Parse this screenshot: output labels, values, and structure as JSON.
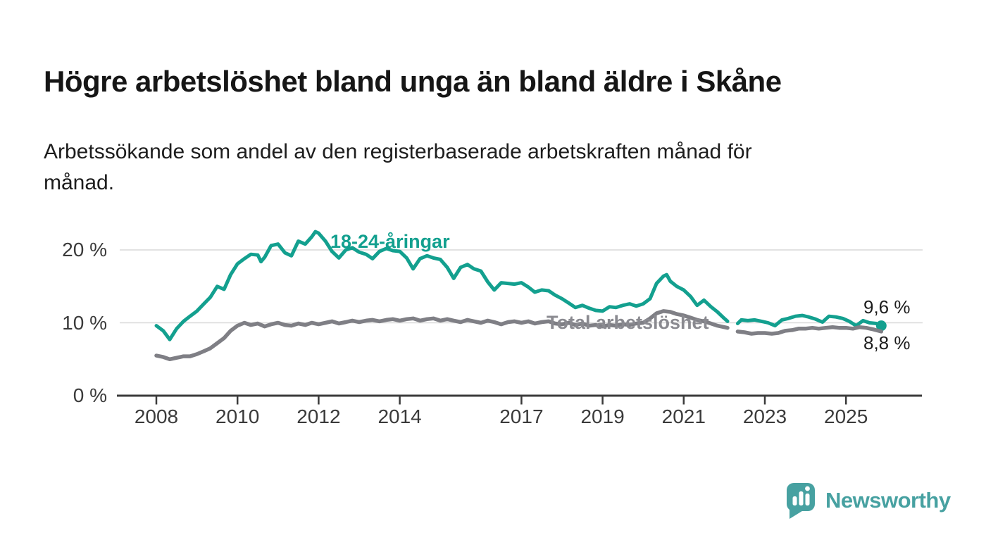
{
  "header": {
    "title": "Högre arbetslöshet bland unga än bland äldre i Skåne",
    "subtitle": "Arbetssökande som andel av den registerbaserade arbetskraften månad för\nmånad."
  },
  "logo": {
    "text": "Newsworthy",
    "icon": "speech-bubble-bar-chart",
    "color": "#47a1a1"
  },
  "chart_data": {
    "type": "line",
    "title": "Högre arbetslöshet bland unga än bland äldre i Skåne",
    "subtitle": "Arbetssökande som andel av den registerbaserade arbetskraften månad för månad.",
    "unit": "%",
    "grid": "horizontal-only",
    "x_range": [
      2007.1,
      2026.9
    ],
    "ylim": [
      0,
      23.5
    ],
    "x_ticks": [
      2008,
      2010,
      2012,
      2014,
      2017,
      2019,
      2021,
      2023,
      2025
    ],
    "y_ticks": [
      {
        "value": 20,
        "label": "20 %"
      },
      {
        "value": 10,
        "label": "10 %"
      },
      {
        "value": 0,
        "label": "0 %"
      }
    ],
    "data_break_note": "both series have a gap in early 2022",
    "series": [
      {
        "name": "18-24-åringar",
        "color": "#13a08f",
        "line_width": 5,
        "end_label": "9,6 %",
        "end_value": 9.6,
        "end_dot": true,
        "segments": [
          [
            [
              2008,
              9.6
            ],
            [
              2008.17,
              8.9
            ],
            [
              2008.33,
              7.7
            ],
            [
              2008.5,
              9.2
            ],
            [
              2008.67,
              10.2
            ],
            [
              2008.83,
              10.9
            ],
            [
              2009,
              11.6
            ],
            [
              2009.17,
              12.6
            ],
            [
              2009.33,
              13.5
            ],
            [
              2009.5,
              15.0
            ],
            [
              2009.67,
              14.6
            ],
            [
              2009.83,
              16.6
            ],
            [
              2010,
              18.1
            ],
            [
              2010.17,
              18.8
            ],
            [
              2010.33,
              19.4
            ],
            [
              2010.5,
              19.3
            ],
            [
              2010.58,
              18.4
            ],
            [
              2010.67,
              19.0
            ],
            [
              2010.83,
              20.6
            ],
            [
              2011,
              20.8
            ],
            [
              2011.17,
              19.6
            ],
            [
              2011.33,
              19.2
            ],
            [
              2011.5,
              21.2
            ],
            [
              2011.67,
              20.8
            ],
            [
              2011.83,
              21.8
            ],
            [
              2011.92,
              22.5
            ],
            [
              2012,
              22.3
            ],
            [
              2012.17,
              21.2
            ],
            [
              2012.33,
              19.8
            ],
            [
              2012.5,
              18.9
            ],
            [
              2012.67,
              20.0
            ],
            [
              2012.83,
              20.3
            ],
            [
              2013,
              19.7
            ],
            [
              2013.17,
              19.4
            ],
            [
              2013.33,
              18.8
            ],
            [
              2013.5,
              19.8
            ],
            [
              2013.67,
              20.2
            ],
            [
              2013.83,
              19.9
            ],
            [
              2014,
              19.8
            ],
            [
              2014.17,
              18.9
            ],
            [
              2014.33,
              17.4
            ],
            [
              2014.5,
              18.8
            ],
            [
              2014.67,
              19.2
            ],
            [
              2014.83,
              18.9
            ],
            [
              2015,
              18.7
            ],
            [
              2015.17,
              17.6
            ],
            [
              2015.33,
              16.1
            ],
            [
              2015.5,
              17.6
            ],
            [
              2015.67,
              18.0
            ],
            [
              2015.83,
              17.4
            ],
            [
              2016,
              17.1
            ],
            [
              2016.17,
              15.6
            ],
            [
              2016.33,
              14.5
            ],
            [
              2016.5,
              15.5
            ],
            [
              2016.67,
              15.4
            ],
            [
              2016.83,
              15.3
            ],
            [
              2017,
              15.5
            ],
            [
              2017.17,
              14.9
            ],
            [
              2017.33,
              14.2
            ],
            [
              2017.5,
              14.5
            ],
            [
              2017.67,
              14.4
            ],
            [
              2017.83,
              13.8
            ],
            [
              2018,
              13.3
            ],
            [
              2018.17,
              12.7
            ],
            [
              2018.33,
              12.1
            ],
            [
              2018.5,
              12.4
            ],
            [
              2018.67,
              12.0
            ],
            [
              2018.83,
              11.7
            ],
            [
              2019,
              11.6
            ],
            [
              2019.17,
              12.2
            ],
            [
              2019.33,
              12.1
            ],
            [
              2019.5,
              12.4
            ],
            [
              2019.67,
              12.6
            ],
            [
              2019.83,
              12.3
            ],
            [
              2020,
              12.6
            ],
            [
              2020.17,
              13.3
            ],
            [
              2020.33,
              15.4
            ],
            [
              2020.5,
              16.4
            ],
            [
              2020.58,
              16.6
            ],
            [
              2020.67,
              15.7
            ],
            [
              2020.83,
              15.0
            ],
            [
              2021,
              14.5
            ],
            [
              2021.17,
              13.6
            ],
            [
              2021.33,
              12.4
            ],
            [
              2021.5,
              13.1
            ],
            [
              2021.67,
              12.2
            ],
            [
              2021.83,
              11.5
            ],
            [
              2022,
              10.6
            ],
            [
              2022.08,
              10.2
            ]
          ],
          [
            [
              2022.33,
              9.9
            ],
            [
              2022.42,
              10.4
            ],
            [
              2022.58,
              10.3
            ],
            [
              2022.75,
              10.4
            ],
            [
              2022.92,
              10.2
            ],
            [
              2023.08,
              10.0
            ],
            [
              2023.25,
              9.6
            ],
            [
              2023.42,
              10.4
            ],
            [
              2023.58,
              10.6
            ],
            [
              2023.75,
              10.9
            ],
            [
              2023.92,
              11.0
            ],
            [
              2024.08,
              10.8
            ],
            [
              2024.25,
              10.5
            ],
            [
              2024.42,
              10.1
            ],
            [
              2024.58,
              10.9
            ],
            [
              2024.75,
              10.8
            ],
            [
              2024.92,
              10.6
            ],
            [
              2025.08,
              10.2
            ],
            [
              2025.25,
              9.6
            ],
            [
              2025.42,
              10.3
            ],
            [
              2025.58,
              10.0
            ],
            [
              2025.75,
              9.9
            ],
            [
              2025.87,
              9.6
            ]
          ]
        ]
      },
      {
        "name": "Total arbetslöshet",
        "color": "#7f7f85",
        "line_width": 5.5,
        "end_label": "8,8 %",
        "end_value": 8.8,
        "end_dot": false,
        "segments": [
          [
            [
              2008,
              5.5
            ],
            [
              2008.17,
              5.3
            ],
            [
              2008.33,
              5.0
            ],
            [
              2008.5,
              5.2
            ],
            [
              2008.67,
              5.4
            ],
            [
              2008.83,
              5.4
            ],
            [
              2009,
              5.7
            ],
            [
              2009.17,
              6.1
            ],
            [
              2009.33,
              6.5
            ],
            [
              2009.5,
              7.2
            ],
            [
              2009.67,
              7.9
            ],
            [
              2009.83,
              8.9
            ],
            [
              2010,
              9.6
            ],
            [
              2010.17,
              10.0
            ],
            [
              2010.33,
              9.7
            ],
            [
              2010.5,
              9.9
            ],
            [
              2010.67,
              9.5
            ],
            [
              2010.83,
              9.8
            ],
            [
              2011,
              10.0
            ],
            [
              2011.17,
              9.7
            ],
            [
              2011.33,
              9.6
            ],
            [
              2011.5,
              9.9
            ],
            [
              2011.67,
              9.7
            ],
            [
              2011.83,
              10.0
            ],
            [
              2012,
              9.8
            ],
            [
              2012.17,
              10.0
            ],
            [
              2012.33,
              10.2
            ],
            [
              2012.5,
              9.9
            ],
            [
              2012.67,
              10.1
            ],
            [
              2012.83,
              10.3
            ],
            [
              2013,
              10.1
            ],
            [
              2013.17,
              10.3
            ],
            [
              2013.33,
              10.4
            ],
            [
              2013.5,
              10.2
            ],
            [
              2013.67,
              10.4
            ],
            [
              2013.83,
              10.5
            ],
            [
              2014,
              10.3
            ],
            [
              2014.17,
              10.5
            ],
            [
              2014.33,
              10.6
            ],
            [
              2014.5,
              10.3
            ],
            [
              2014.67,
              10.5
            ],
            [
              2014.83,
              10.6
            ],
            [
              2015,
              10.3
            ],
            [
              2015.17,
              10.5
            ],
            [
              2015.33,
              10.3
            ],
            [
              2015.5,
              10.1
            ],
            [
              2015.67,
              10.4
            ],
            [
              2015.83,
              10.2
            ],
            [
              2016,
              10.0
            ],
            [
              2016.17,
              10.3
            ],
            [
              2016.33,
              10.1
            ],
            [
              2016.5,
              9.8
            ],
            [
              2016.67,
              10.1
            ],
            [
              2016.83,
              10.2
            ],
            [
              2017,
              10.0
            ],
            [
              2017.17,
              10.2
            ],
            [
              2017.33,
              9.9
            ],
            [
              2017.5,
              10.1
            ],
            [
              2017.67,
              10.2
            ],
            [
              2017.83,
              9.9
            ],
            [
              2018,
              9.8
            ],
            [
              2018.17,
              10.0
            ],
            [
              2018.33,
              9.7
            ],
            [
              2018.5,
              9.9
            ],
            [
              2018.67,
              9.6
            ],
            [
              2018.83,
              9.7
            ],
            [
              2019,
              9.5
            ],
            [
              2019.17,
              9.7
            ],
            [
              2019.33,
              9.6
            ],
            [
              2019.5,
              9.8
            ],
            [
              2019.67,
              9.7
            ],
            [
              2019.83,
              9.9
            ],
            [
              2020,
              10.0
            ],
            [
              2020.17,
              10.6
            ],
            [
              2020.33,
              11.3
            ],
            [
              2020.5,
              11.6
            ],
            [
              2020.67,
              11.5
            ],
            [
              2020.83,
              11.2
            ],
            [
              2021,
              11.0
            ],
            [
              2021.17,
              10.7
            ],
            [
              2021.33,
              10.4
            ],
            [
              2021.5,
              10.2
            ],
            [
              2021.67,
              9.9
            ],
            [
              2021.83,
              9.6
            ],
            [
              2022.08,
              9.3
            ]
          ],
          [
            [
              2022.33,
              8.8
            ],
            [
              2022.5,
              8.7
            ],
            [
              2022.67,
              8.5
            ],
            [
              2022.83,
              8.6
            ],
            [
              2023,
              8.6
            ],
            [
              2023.17,
              8.5
            ],
            [
              2023.33,
              8.6
            ],
            [
              2023.5,
              8.9
            ],
            [
              2023.67,
              9.0
            ],
            [
              2023.83,
              9.2
            ],
            [
              2024,
              9.2
            ],
            [
              2024.17,
              9.3
            ],
            [
              2024.33,
              9.2
            ],
            [
              2024.5,
              9.3
            ],
            [
              2024.67,
              9.4
            ],
            [
              2024.83,
              9.3
            ],
            [
              2025,
              9.3
            ],
            [
              2025.17,
              9.2
            ],
            [
              2025.33,
              9.4
            ],
            [
              2025.5,
              9.3
            ],
            [
              2025.67,
              9.1
            ],
            [
              2025.87,
              8.8
            ]
          ]
        ]
      }
    ]
  }
}
